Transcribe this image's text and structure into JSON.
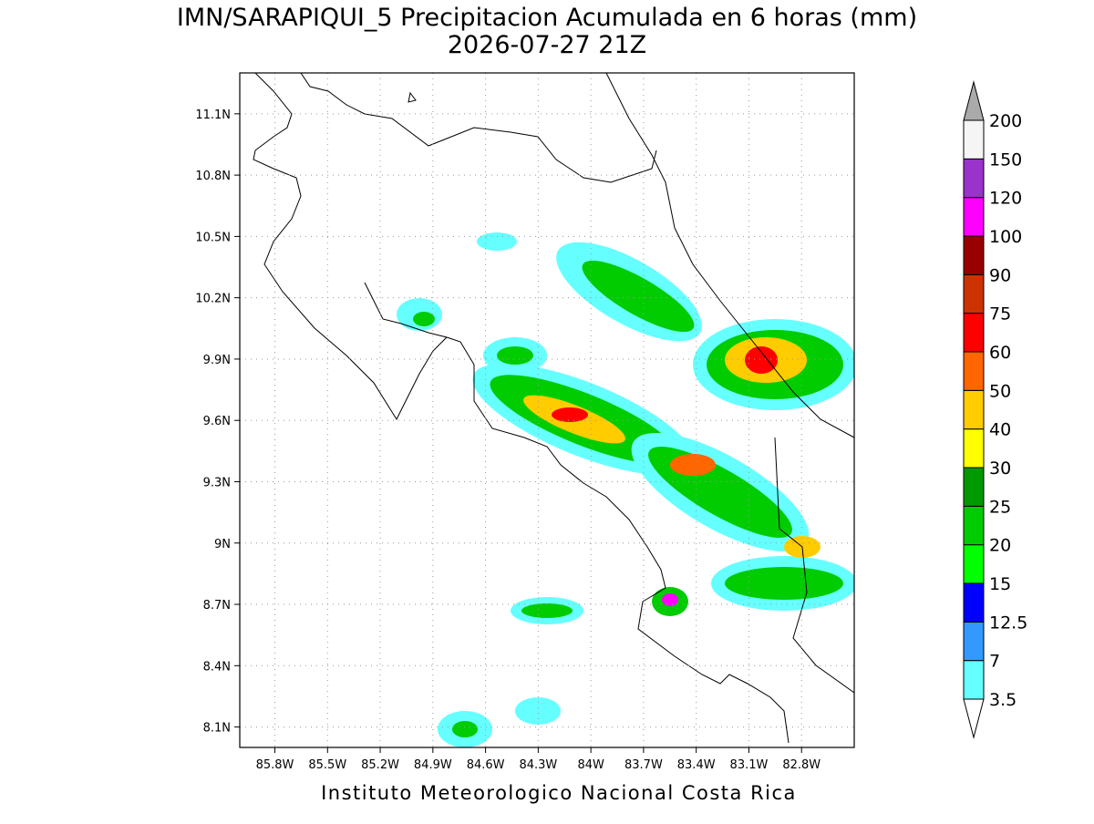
{
  "title": "IMN/SARAPIQUI_5 Precipitacion Acumulada en 6 horas (mm)",
  "subtitle": "2026-07-27 21Z",
  "map": {
    "xlim": [
      -86.0,
      -82.5
    ],
    "ylim": [
      8.0,
      11.3
    ],
    "lat_ticks": [
      {
        "value": 11.1,
        "label": "11.1N"
      },
      {
        "value": 10.8,
        "label": "10.8N"
      },
      {
        "value": 10.5,
        "label": "10.5N"
      },
      {
        "value": 10.2,
        "label": "10.2N"
      },
      {
        "value": 9.9,
        "label": "9.9N"
      },
      {
        "value": 9.6,
        "label": "9.6N"
      },
      {
        "value": 9.3,
        "label": "9.3N"
      },
      {
        "value": 9.0,
        "label": "9N"
      },
      {
        "value": 8.7,
        "label": "8.7N"
      },
      {
        "value": 8.4,
        "label": "8.4N"
      },
      {
        "value": 8.1,
        "label": "8.1N"
      }
    ],
    "lon_ticks": [
      {
        "value": -85.8,
        "label": "85.8W"
      },
      {
        "value": -85.5,
        "label": "85.5W"
      },
      {
        "value": -85.2,
        "label": "85.2W"
      },
      {
        "value": -84.9,
        "label": "84.9W"
      },
      {
        "value": -84.6,
        "label": "84.6W"
      },
      {
        "value": -84.3,
        "label": "84.3W"
      },
      {
        "value": -84.0,
        "label": "84W"
      },
      {
        "value": -83.7,
        "label": "83.7W"
      },
      {
        "value": -83.4,
        "label": "83.4W"
      },
      {
        "value": -83.1,
        "label": "83.1W"
      },
      {
        "value": -82.8,
        "label": "82.8W"
      }
    ]
  },
  "colorbar": {
    "levels": [
      3.5,
      7,
      12.5,
      15,
      20,
      25,
      30,
      40,
      50,
      60,
      75,
      90,
      100,
      120,
      150,
      200
    ],
    "colors": [
      "#66ffff",
      "#3399ff",
      "#0000ff",
      "#00ff00",
      "#00cc00",
      "#009900",
      "#ffff00",
      "#ffcc00",
      "#ff6600",
      "#ff0000",
      "#cc3300",
      "#990000",
      "#ff00ff",
      "#9933cc",
      "#f5f5f5"
    ],
    "under_color": "#ffffff",
    "over_color": "#aaaaaa"
  },
  "footer": "Instituto Meteorologico Nacional Costa Rica"
}
